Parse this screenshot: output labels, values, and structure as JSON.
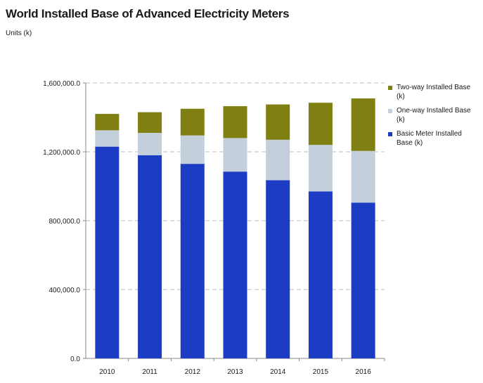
{
  "chart_data": {
    "type": "bar",
    "stacked": true,
    "title": "World Installed Base of Advanced Electricity Meters",
    "subtitle": "Units (k)",
    "xlabel": "",
    "ylabel": "",
    "categories": [
      "2010",
      "2011",
      "2012",
      "2013",
      "2014",
      "2015",
      "2016"
    ],
    "ylim": [
      0,
      1600000
    ],
    "yticks": [
      0,
      400000,
      800000,
      1200000,
      1600000
    ],
    "ytick_labels": [
      "0.0",
      "400,000.0",
      "800,000.0",
      "1,200,000.0",
      "1,600,000.0"
    ],
    "grid": true,
    "legend_position": "right",
    "series": [
      {
        "name": "Basic Meter Installed Base (k)",
        "color": "#1c3cc4",
        "values": [
          1230000,
          1180000,
          1130000,
          1085000,
          1035000,
          970000,
          905000
        ]
      },
      {
        "name": "One-way Installed Base (k)",
        "color": "#c3d0dc",
        "values": [
          95000,
          130000,
          165000,
          195000,
          235000,
          270000,
          300000
        ]
      },
      {
        "name": "Two-way Installed Base (k)",
        "color": "#7f7f12",
        "values": [
          95000,
          120000,
          155000,
          185000,
          205000,
          245000,
          305000
        ]
      }
    ]
  }
}
